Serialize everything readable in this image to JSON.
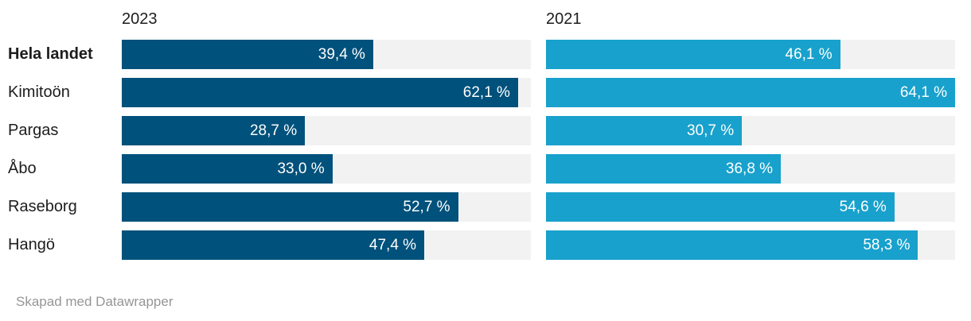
{
  "chart_data": {
    "type": "bar",
    "layout": "horizontal-split-columns",
    "categories": [
      "Hela landet",
      "Kimitoön",
      "Pargas",
      "Åbo",
      "Raseborg",
      "Hangö"
    ],
    "bold_categories": [
      "Hela landet"
    ],
    "columns": [
      {
        "label": "2023",
        "color": "#00517b"
      },
      {
        "label": "2021",
        "color": "#18a1cc"
      }
    ],
    "series": [
      {
        "name": "2023",
        "values": [
          39.4,
          62.1,
          28.7,
          33.0,
          52.7,
          47.4
        ]
      },
      {
        "name": "2021",
        "values": [
          46.1,
          64.1,
          30.7,
          36.8,
          54.6,
          58.3
        ]
      }
    ],
    "value_labels": [
      [
        "39,4 %",
        "62,1 %",
        "28,7 %",
        "33,0 %",
        "52,7 %",
        "47,4 %"
      ],
      [
        "46,1 %",
        "64,1 %",
        "30,7 %",
        "36,8 %",
        "54,6 %",
        "58,3 %"
      ]
    ],
    "xmax": 64.1,
    "track_color": "#f2f2f2",
    "value_label_color": "#ffffff",
    "label_color": "#1d1d1d",
    "grid": false,
    "legend_position": "column-headers"
  },
  "footer": {
    "credit": "Skapad med Datawrapper"
  }
}
